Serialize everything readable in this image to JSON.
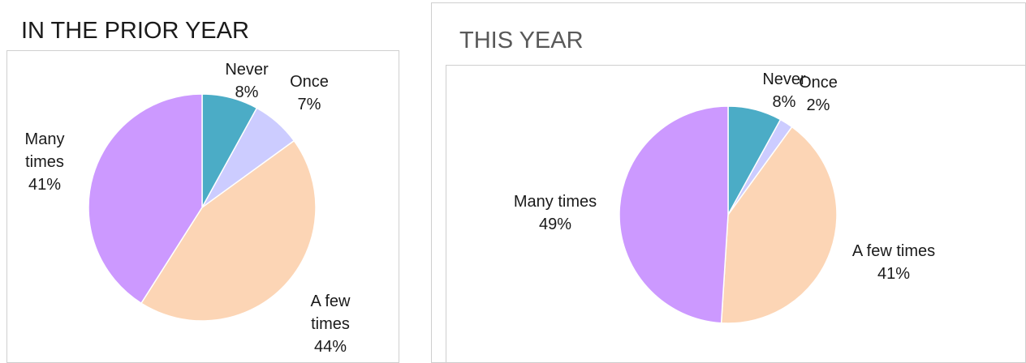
{
  "chart_data": [
    {
      "type": "pie",
      "title": "IN THE PRIOR YEAR",
      "categories": [
        "Never",
        "Once",
        "A few times",
        "Many times"
      ],
      "values": [
        8,
        7,
        44,
        41
      ],
      "value_labels": [
        "8%",
        "7%",
        "44%",
        "41%"
      ],
      "label_lines": [
        [
          "Never",
          "8%"
        ],
        [
          "Once",
          "7%"
        ],
        [
          "A few",
          "times",
          "44%"
        ],
        [
          "Many",
          "times",
          "41%"
        ]
      ],
      "colors": [
        "#4bacc6",
        "#ccccff",
        "#fcd5b5",
        "#cc99ff"
      ],
      "legend": "none"
    },
    {
      "type": "pie",
      "title": "THIS YEAR",
      "categories": [
        "Never",
        "Once",
        "A few times",
        "Many times"
      ],
      "values": [
        8,
        2,
        41,
        49
      ],
      "value_labels": [
        "8%",
        "2%",
        "41%",
        "49%"
      ],
      "label_lines": [
        [
          "Never",
          "8%"
        ],
        [
          "Once",
          "2%"
        ],
        [
          "A few times",
          "41%"
        ],
        [
          "Many times",
          "49%"
        ]
      ],
      "colors": [
        "#4bacc6",
        "#ccccff",
        "#fcd5b5",
        "#cc99ff"
      ],
      "legend": "none"
    }
  ]
}
